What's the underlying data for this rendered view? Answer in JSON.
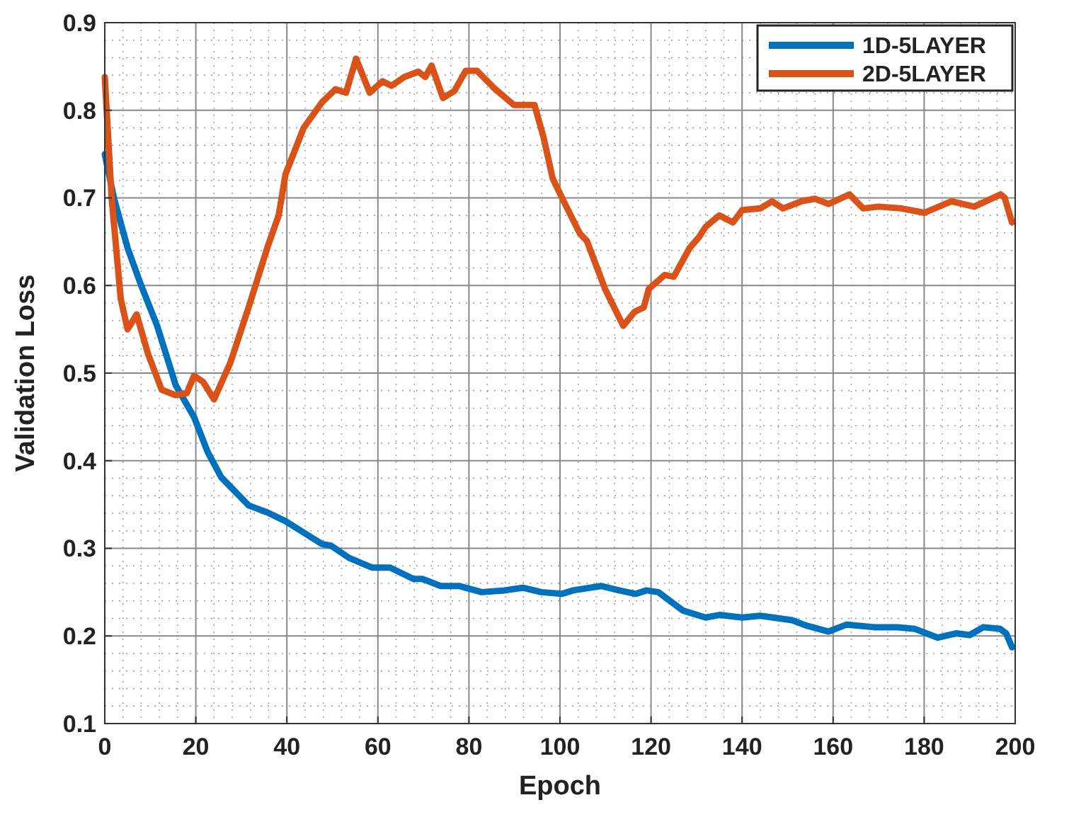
{
  "chart_data": {
    "type": "line",
    "xlabel": "Epoch",
    "ylabel": "Validation Loss",
    "xlim": [
      0,
      200
    ],
    "ylim": [
      0.1,
      0.9
    ],
    "xticks": [
      0,
      20,
      40,
      60,
      80,
      100,
      120,
      140,
      160,
      180,
      200
    ],
    "yticks": [
      0.1,
      0.2,
      0.3,
      0.4,
      0.5,
      0.6,
      0.7,
      0.8,
      0.9
    ],
    "grid": true,
    "legend": "top right",
    "line_style": "solid",
    "series": [
      {
        "name": "1D-5LAYER",
        "color": "#0072bd",
        "x": [
          0,
          2,
          5,
          8,
          11.5,
          15.6,
          19.6,
          22.6,
          25.6,
          31.6,
          35.7,
          39.7,
          43.7,
          47.7,
          49.7,
          53.7,
          58.7,
          62.7,
          67.8,
          69.8,
          73.8,
          77.8,
          82.8,
          87.8,
          91.8,
          95.9,
          100.4,
          102.9,
          109,
          113,
          116.6,
          119,
          121.6,
          127,
          132,
          135,
          140,
          144,
          151,
          154,
          159,
          163,
          169,
          174,
          178,
          183,
          187,
          190,
          193,
          196.7,
          198,
          199.3
        ],
        "values": [
          0.75,
          0.7,
          0.643,
          0.6,
          0.554,
          0.486,
          0.45,
          0.41,
          0.381,
          0.349,
          0.341,
          0.331,
          0.318,
          0.305,
          0.303,
          0.289,
          0.278,
          0.278,
          0.265,
          0.265,
          0.257,
          0.257,
          0.25,
          0.252,
          0.255,
          0.25,
          0.248,
          0.252,
          0.257,
          0.252,
          0.248,
          0.252,
          0.25,
          0.229,
          0.221,
          0.224,
          0.221,
          0.223,
          0.218,
          0.212,
          0.205,
          0.213,
          0.21,
          0.21,
          0.208,
          0.198,
          0.203,
          0.201,
          0.21,
          0.208,
          0.203,
          0.187
        ]
      },
      {
        "name": "2D-5LAYER",
        "color": "#d95319",
        "x": [
          0,
          1.5,
          3.5,
          5,
          7,
          9.5,
          12.5,
          15.5,
          18,
          19.6,
          21.6,
          24,
          27.6,
          31.6,
          35.7,
          38.2,
          39.7,
          43.7,
          47.7,
          50.7,
          53,
          55.2,
          58.2,
          61,
          63,
          65.8,
          68.9,
          70.4,
          71.8,
          74.3,
          76.8,
          79.3,
          81.8,
          85.8,
          89.9,
          94.4,
          96.4,
          98.4,
          101.4,
          104.4,
          105.9,
          109.9,
          113.9,
          116.4,
          118.4,
          119.5,
          123,
          125,
          128.5,
          130.5,
          132,
          135,
          138,
          140,
          144,
          146.6,
          149,
          153,
          156,
          159,
          163.6,
          166.6,
          170,
          175,
          180,
          186,
          191,
          196.8,
          197.7,
          199.3
        ],
        "values": [
          0.838,
          0.7,
          0.585,
          0.55,
          0.567,
          0.522,
          0.481,
          0.475,
          0.477,
          0.497,
          0.49,
          0.47,
          0.512,
          0.575,
          0.643,
          0.68,
          0.727,
          0.78,
          0.809,
          0.824,
          0.82,
          0.859,
          0.82,
          0.833,
          0.828,
          0.838,
          0.844,
          0.838,
          0.851,
          0.814,
          0.822,
          0.845,
          0.845,
          0.824,
          0.806,
          0.806,
          0.769,
          0.722,
          0.69,
          0.659,
          0.651,
          0.596,
          0.554,
          0.57,
          0.575,
          0.596,
          0.612,
          0.61,
          0.643,
          0.655,
          0.667,
          0.68,
          0.672,
          0.686,
          0.688,
          0.696,
          0.688,
          0.696,
          0.699,
          0.693,
          0.704,
          0.688,
          0.69,
          0.688,
          0.683,
          0.696,
          0.69,
          0.704,
          0.7,
          0.672
        ]
      }
    ]
  }
}
